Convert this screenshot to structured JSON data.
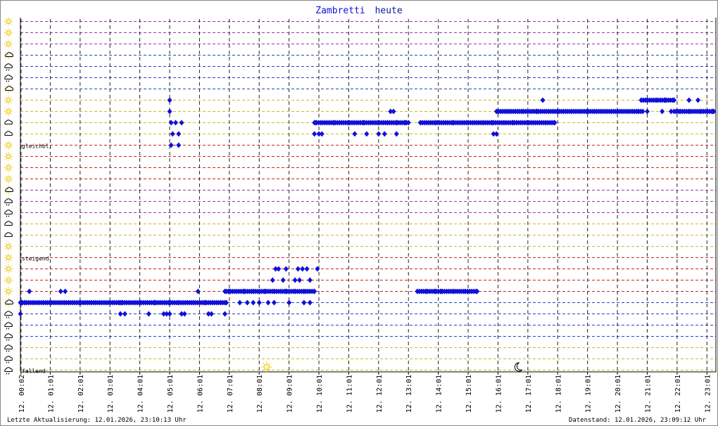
{
  "title": {
    "part1": "Zambretti",
    "part2": "heute"
  },
  "footer": {
    "left": "Letzte Aktualisierung: 12.01.2026, 23:10:13 Uhr",
    "right": "Datenstand: 12.01.2026, 23:09:12 Uhr"
  },
  "colors": {
    "marker": "#1010d8",
    "falling_grid": "#2244cc",
    "steady_grid": "#cc2222",
    "rising_grid": "#9933aa",
    "yellow_grid": "#ccbb22",
    "vertical_grid": "#222222",
    "icon_sun": "#e8c000",
    "icon_cloud": "#000000"
  },
  "chart_data": {
    "type": "scatter",
    "title": "Zambretti heute",
    "x_axis": {
      "label": "",
      "ticks": [
        "12. 00:02",
        "12. 01:01",
        "12. 02:01",
        "12. 03:01",
        "12. 04:01",
        "12. 05:01",
        "12. 06:01",
        "12. 07:01",
        "12. 08:01",
        "12. 09:01",
        "12. 10:01",
        "12. 11:01",
        "12. 12:01",
        "12. 13:01",
        "12. 14:01",
        "12. 15:01",
        "12. 16:01",
        "12. 17:01",
        "12. 18:01",
        "12. 19:01",
        "12. 20:01",
        "12. 21:01",
        "12. 22:01",
        "12. 23:01"
      ],
      "range_hours": [
        0,
        23.3
      ]
    },
    "y_axis": {
      "levels": 32,
      "group_labels": [
        {
          "text": "gleichbl.",
          "level": 20
        },
        {
          "text": "steigend",
          "level": 10
        },
        {
          "text": "fallend",
          "level": 0
        }
      ],
      "icons": [
        "sun",
        "sun",
        "sun",
        "cloud-sun",
        "rain",
        "rain",
        "cloud-sun",
        "sun",
        "sun",
        "cloud",
        "cloud",
        "sun",
        "sun",
        "sun",
        "sun",
        "cloud-sun",
        "rain",
        "rain",
        "cloud",
        "cloud",
        "sun",
        "sun",
        "sun",
        "sun",
        "sun",
        "cloud-sun",
        "rain",
        "rain",
        "rain",
        "rain",
        "rain",
        "rain"
      ],
      "grid_colors": [
        "yellow",
        "yellow",
        "yellow",
        "falling",
        "falling",
        "falling",
        "falling",
        "steady",
        "steady",
        "steady",
        "steady",
        "yellow",
        "yellow",
        "yellow",
        "rising",
        "rising",
        "rising",
        "steady",
        "steady",
        "steady",
        "steady",
        "yellow",
        "yellow",
        "yellow",
        "yellow",
        "falling",
        "falling",
        "falling",
        "falling",
        "rising",
        "rising",
        "rising"
      ]
    },
    "markers": {
      "sunrise": "08:15",
      "sunset": "16:40"
    },
    "series": [
      {
        "points": [
          [
            0.0,
            5
          ],
          [
            0.05,
            6
          ],
          [
            0.15,
            6
          ],
          [
            0.3,
            7
          ],
          [
            1.35,
            7
          ],
          [
            1.5,
            7
          ],
          [
            0.0,
            6
          ],
          [
            1.0,
            6
          ],
          [
            2.0,
            6
          ],
          [
            3.0,
            6
          ],
          [
            3.3,
            6
          ],
          [
            3.35,
            5
          ],
          [
            3.5,
            5
          ],
          [
            4.3,
            5
          ],
          [
            4.8,
            5
          ],
          [
            4.9,
            5
          ],
          [
            5.0,
            5
          ],
          [
            5.4,
            5
          ],
          [
            5.5,
            5
          ],
          [
            6.3,
            5
          ],
          [
            6.4,
            5
          ],
          [
            6.85,
            5
          ],
          [
            3.4,
            6
          ],
          [
            4.0,
            6
          ],
          [
            4.5,
            6
          ],
          [
            5.0,
            6
          ],
          [
            5.3,
            6
          ],
          [
            5.8,
            6
          ],
          [
            6.2,
            6
          ],
          [
            6.9,
            6
          ],
          [
            5.0,
            23
          ],
          [
            5.05,
            22
          ],
          [
            5.1,
            21
          ],
          [
            5.05,
            20
          ],
          [
            5.0,
            24
          ],
          [
            5.2,
            22
          ],
          [
            5.3,
            21
          ],
          [
            5.4,
            22
          ],
          [
            5.3,
            20
          ],
          [
            5.95,
            7
          ],
          [
            6.85,
            7
          ],
          [
            7.0,
            7
          ],
          [
            7.5,
            7
          ],
          [
            7.8,
            7
          ],
          [
            8.2,
            7
          ],
          [
            8.5,
            7
          ],
          [
            8.9,
            7
          ],
          [
            9.2,
            7
          ],
          [
            9.5,
            7
          ],
          [
            9.85,
            7
          ],
          [
            7.35,
            6
          ],
          [
            7.6,
            6
          ],
          [
            7.8,
            6
          ],
          [
            8.0,
            6
          ],
          [
            8.3,
            6
          ],
          [
            8.5,
            6
          ],
          [
            9.0,
            6
          ],
          [
            9.5,
            6
          ],
          [
            9.7,
            6
          ],
          [
            8.45,
            8
          ],
          [
            8.8,
            8
          ],
          [
            9.2,
            8
          ],
          [
            9.35,
            8
          ],
          [
            9.7,
            8
          ],
          [
            8.55,
            9
          ],
          [
            8.65,
            9
          ],
          [
            8.9,
            9
          ],
          [
            9.3,
            9
          ],
          [
            9.45,
            9
          ],
          [
            9.6,
            9
          ],
          [
            9.95,
            9
          ],
          [
            9.85,
            21
          ],
          [
            10.0,
            21
          ],
          [
            10.1,
            21
          ],
          [
            9.9,
            22
          ],
          [
            10.5,
            22
          ],
          [
            11.0,
            22
          ],
          [
            11.5,
            22
          ],
          [
            12.0,
            22
          ],
          [
            12.3,
            22
          ],
          [
            12.6,
            22
          ],
          [
            12.9,
            22
          ],
          [
            13.0,
            22
          ],
          [
            12.4,
            23
          ],
          [
            12.5,
            23
          ],
          [
            12.2,
            21
          ],
          [
            12.6,
            21
          ],
          [
            12.0,
            21
          ],
          [
            11.6,
            21
          ],
          [
            11.2,
            21
          ],
          [
            13.4,
            22
          ],
          [
            13.9,
            22
          ],
          [
            14.5,
            22
          ],
          [
            15.0,
            22
          ],
          [
            15.5,
            22
          ],
          [
            15.8,
            22
          ],
          [
            16.2,
            22
          ],
          [
            16.5,
            22
          ],
          [
            17.0,
            22
          ],
          [
            17.6,
            22
          ],
          [
            17.9,
            22
          ],
          [
            13.3,
            7
          ],
          [
            13.6,
            7
          ],
          [
            13.9,
            7
          ],
          [
            14.1,
            7
          ],
          [
            14.5,
            7
          ],
          [
            14.9,
            7
          ],
          [
            15.3,
            7
          ],
          [
            15.85,
            21
          ],
          [
            15.95,
            21
          ],
          [
            16.0,
            23
          ],
          [
            16.3,
            23
          ],
          [
            16.8,
            23
          ],
          [
            17.3,
            23
          ],
          [
            17.5,
            24
          ],
          [
            18.0,
            23
          ],
          [
            19.0,
            23
          ],
          [
            20.0,
            23
          ],
          [
            20.7,
            23
          ],
          [
            20.85,
            23
          ],
          [
            20.8,
            24
          ],
          [
            21.0,
            24
          ],
          [
            21.3,
            24
          ],
          [
            21.6,
            24
          ],
          [
            21.9,
            24
          ],
          [
            22.4,
            24
          ],
          [
            22.7,
            24
          ],
          [
            21.0,
            23
          ],
          [
            21.5,
            23
          ],
          [
            21.8,
            23
          ],
          [
            22.1,
            23
          ],
          [
            22.4,
            23
          ],
          [
            22.8,
            23
          ],
          [
            23.2,
            23
          ]
        ]
      }
    ]
  }
}
